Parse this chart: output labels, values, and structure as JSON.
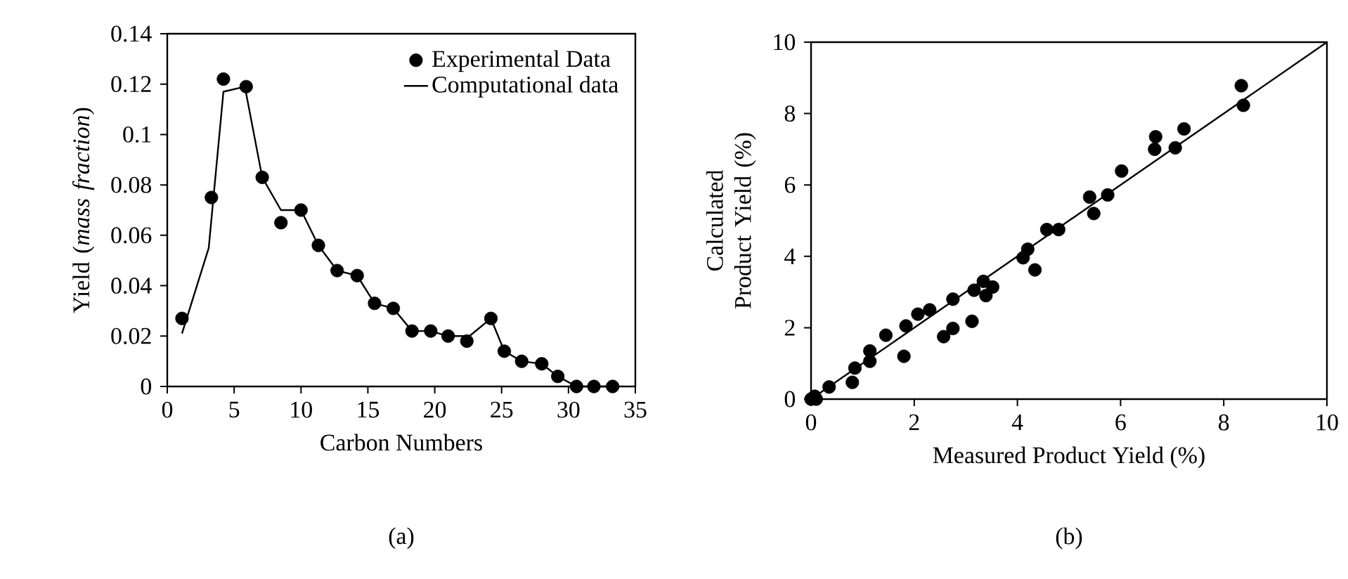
{
  "chart_data": [
    {
      "type": "scatter",
      "xlabel": "Carbon Numbers",
      "ylabel": "Yield (*mass fraction*)",
      "annotations": [
        "(a)"
      ],
      "xlim": [
        0,
        35
      ],
      "xticks": [
        0,
        5,
        10,
        15,
        20,
        25,
        30,
        35
      ],
      "ylim": [
        0,
        0.14
      ],
      "yticks": [
        0,
        0.02,
        0.04,
        0.06,
        0.08,
        0.1,
        0.12,
        0.14
      ],
      "legend": "top right",
      "grid": false,
      "series": [
        {
          "name": "Experimental Data",
          "type": "scatter",
          "marker": "circle",
          "color": "#000000",
          "x": [
            1.1,
            3.3,
            4.2,
            5.9,
            7.1,
            8.5,
            10.0,
            11.3,
            12.7,
            14.2,
            15.5,
            16.9,
            18.3,
            19.7,
            21.0,
            22.4,
            24.2,
            25.2,
            26.5,
            28.0,
            29.2,
            30.6,
            31.9,
            33.3
          ],
          "values": [
            0.027,
            0.075,
            0.122,
            0.119,
            0.083,
            0.065,
            0.07,
            0.056,
            0.046,
            0.044,
            0.033,
            0.031,
            0.022,
            0.022,
            0.02,
            0.018,
            0.027,
            0.014,
            0.01,
            0.009,
            0.004,
            0.0,
            0.0,
            0.0
          ]
        },
        {
          "name": "Computational data",
          "type": "line",
          "marker": "none",
          "line_style": "solid",
          "color": "#000000",
          "x": [
            1.1,
            3.1,
            4.2,
            5.8,
            7.1,
            8.5,
            10.0,
            11.3,
            12.7,
            14.2,
            15.5,
            16.9,
            18.3,
            19.7,
            21.0,
            22.6,
            24.2,
            25.2,
            26.5,
            28.0,
            29.2,
            30.6,
            31.9,
            33.3
          ],
          "values": [
            0.021,
            0.055,
            0.117,
            0.119,
            0.083,
            0.07,
            0.07,
            0.056,
            0.046,
            0.044,
            0.033,
            0.031,
            0.022,
            0.022,
            0.02,
            0.02,
            0.027,
            0.014,
            0.01,
            0.009,
            0.004,
            0.0,
            0.0,
            0.0
          ]
        }
      ]
    },
    {
      "type": "scatter",
      "xlabel": "Measured Product Yield (%)",
      "ylabel": "Calculated Product Yield (%)",
      "annotations": [
        "(b)"
      ],
      "xlim": [
        0,
        10
      ],
      "xticks": [
        0,
        2,
        4,
        6,
        8,
        10
      ],
      "ylim": [
        0,
        10
      ],
      "yticks": [
        0,
        2,
        4,
        6,
        8,
        10
      ],
      "grid": false,
      "series": [
        {
          "type": "scatter",
          "marker": "circle",
          "color": "#000000",
          "x": [
            0,
            0.1,
            0.07,
            0.35,
            0.8,
            0.85,
            1.14,
            1.14,
            1.45,
            1.8,
            1.84,
            2.07,
            2.3,
            2.57,
            2.75,
            2.75,
            3.12,
            3.16,
            3.34,
            3.39,
            3.52,
            4.11,
            4.2,
            4.34,
            4.57,
            4.8,
            5.4,
            5.48,
            5.75,
            6.02,
            6.66,
            6.68,
            7.06,
            7.23,
            8.34,
            8.38
          ],
          "values": [
            0,
            0,
            0.08,
            0.34,
            0.47,
            0.87,
            1.06,
            1.35,
            1.79,
            1.2,
            2.05,
            2.38,
            2.5,
            1.75,
            1.98,
            2.8,
            2.18,
            3.05,
            3.3,
            2.9,
            3.14,
            3.96,
            4.2,
            3.62,
            4.75,
            4.75,
            5.66,
            5.2,
            5.72,
            6.39,
            7.0,
            7.35,
            7.04,
            7.57,
            8.78,
            8.23
          ]
        },
        {
          "type": "line",
          "marker": "none",
          "line_style": "solid",
          "color": "#000000",
          "x": [
            0,
            10
          ],
          "values": [
            0,
            10
          ]
        }
      ]
    }
  ]
}
